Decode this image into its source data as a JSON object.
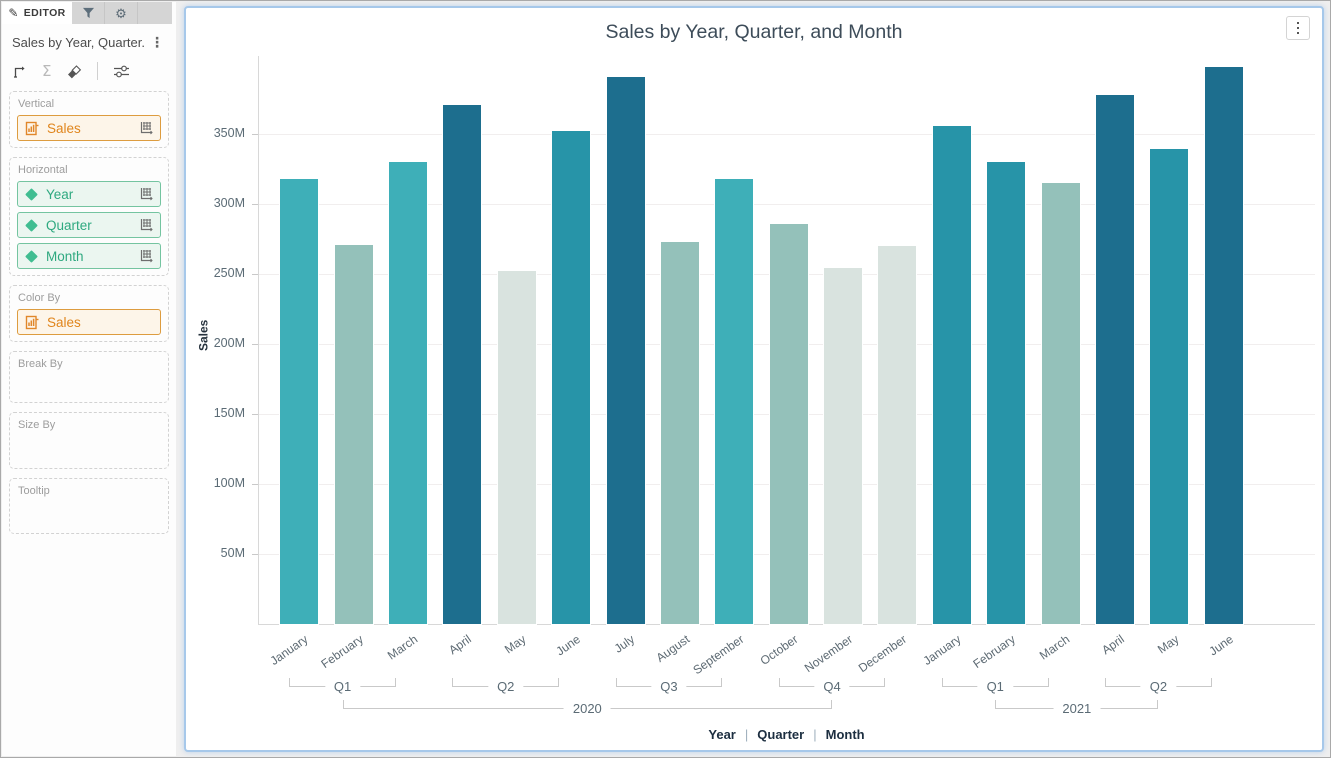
{
  "sidebar": {
    "editor_tab_label": "EDITOR",
    "widget_title": "Sales by Year, Quarter...",
    "wells": [
      {
        "label": "Vertical",
        "slug": "vertical",
        "items": [
          {
            "name": "Sales",
            "kind": "measure",
            "grid_icon": true
          }
        ]
      },
      {
        "label": "Horizontal",
        "slug": "horizontal",
        "items": [
          {
            "name": "Year",
            "kind": "dimension",
            "grid_icon": true
          },
          {
            "name": "Quarter",
            "kind": "dimension",
            "grid_icon": true
          },
          {
            "name": "Month",
            "kind": "dimension",
            "grid_icon": true
          }
        ]
      },
      {
        "label": "Color By",
        "slug": "color-by",
        "items": [
          {
            "name": "Sales",
            "kind": "measure",
            "grid_icon": false
          }
        ]
      },
      {
        "label": "Break By",
        "slug": "break-by",
        "items": []
      },
      {
        "label": "Size By",
        "slug": "size-by",
        "items": []
      },
      {
        "label": "Tooltip",
        "slug": "tooltip",
        "items": []
      }
    ]
  },
  "chart_data": {
    "type": "bar",
    "title": "Sales by Year, Quarter, and Month",
    "ylabel": "Sales",
    "value_unit": "M",
    "ylim": [
      0,
      400
    ],
    "y_ticks": [
      50,
      100,
      150,
      200,
      250,
      300,
      350
    ],
    "grid": true,
    "legend": "none",
    "categories": [
      "January",
      "February",
      "March",
      "April",
      "May",
      "June",
      "July",
      "August",
      "September",
      "October",
      "November",
      "December",
      "January",
      "February",
      "March",
      "April",
      "May",
      "June"
    ],
    "values": [
      318,
      271,
      330,
      371,
      252,
      352,
      391,
      273,
      318,
      286,
      254,
      270,
      356,
      330,
      315,
      378,
      339,
      398
    ],
    "bar_colors": [
      "#3eafb8",
      "#94c1ba",
      "#3eafb8",
      "#1d6e8e",
      "#d9e3df",
      "#2794a8",
      "#1d6e8e",
      "#94c1ba",
      "#3eafb8",
      "#94c1ba",
      "#d9e3df",
      "#d9e3df",
      "#2794a8",
      "#2794a8",
      "#94c1ba",
      "#1d6e8e",
      "#2794a8",
      "#1d6e8e"
    ],
    "quarter_groups": [
      {
        "label": "Q1",
        "start": 0,
        "end": 2
      },
      {
        "label": "Q2",
        "start": 3,
        "end": 5
      },
      {
        "label": "Q3",
        "start": 6,
        "end": 8
      },
      {
        "label": "Q4",
        "start": 9,
        "end": 11
      },
      {
        "label": "Q1",
        "start": 12,
        "end": 14
      },
      {
        "label": "Q2",
        "start": 15,
        "end": 17
      }
    ],
    "year_groups": [
      {
        "label": "2020",
        "q_start": 0,
        "q_end": 3
      },
      {
        "label": "2021",
        "q_start": 4,
        "q_end": 5
      }
    ],
    "axis_levels": [
      "Year",
      "Quarter",
      "Month"
    ],
    "axis_level_separator": "|"
  },
  "colors": {
    "card_border": "#a6c8ea",
    "measure_accent": "#e0851c",
    "dimension_accent": "#2fa980",
    "footer_text": "#1c2e40",
    "bracket_line": "#c9c9c9"
  }
}
